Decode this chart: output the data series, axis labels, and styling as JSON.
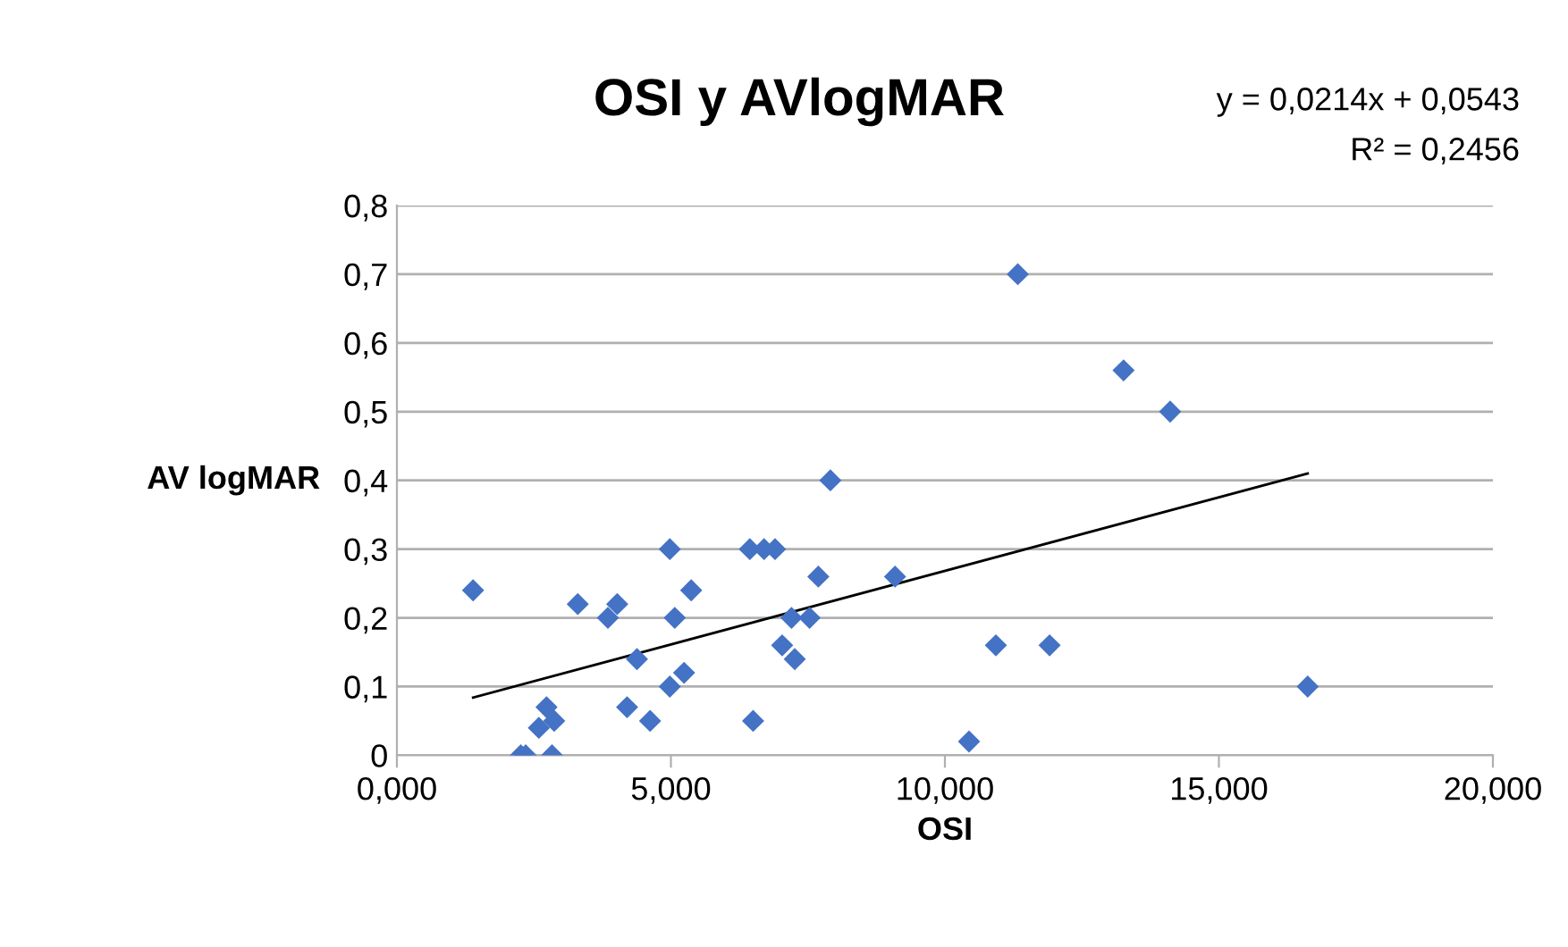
{
  "chart_data": {
    "type": "scatter",
    "title": "OSI y AVlogMAR",
    "xlabel": "OSI",
    "ylabel": "AV logMAR",
    "annotations": [
      "y = 0,0214x + 0,0543",
      "R² = 0,2456"
    ],
    "series": [
      {
        "color": "#4472c4",
        "marker": "diamond",
        "x": [
          1.39,
          3.3,
          4.02,
          3.85,
          4.98,
          5.07,
          5.37,
          4.38,
          5.24,
          4.98,
          4.2,
          4.62,
          2.73,
          2.59,
          2.87,
          2.26,
          2.35,
          2.83,
          6.44,
          6.7,
          6.9,
          7.69,
          9.09,
          7.2,
          7.53,
          7.03,
          7.26,
          6.5,
          7.91,
          11.33,
          13.26,
          14.11,
          10.93,
          11.91,
          16.62,
          10.44
        ],
        "values": [
          0.24,
          0.22,
          0.22,
          0.2,
          0.3,
          0.2,
          0.24,
          0.14,
          0.12,
          0.1,
          0.07,
          0.05,
          0.07,
          0.04,
          0.05,
          0,
          0,
          0,
          0.3,
          0.3,
          0.3,
          0.26,
          0.26,
          0.2,
          0.2,
          0.16,
          0.14,
          0.05,
          0.4,
          0.7,
          0.56,
          0.5,
          0.16,
          0.16,
          0.1,
          0.02
        ]
      },
      {
        "type": "line",
        "color": "#000000",
        "marker": "none",
        "x": [
          1.39,
          16.62
        ],
        "values": [
          0.084,
          0.41
        ]
      }
    ],
    "xlim": [
      0,
      20
    ],
    "xticks": [
      {
        "value": 0,
        "label": "0,000"
      },
      {
        "value": 5,
        "label": "5,000"
      },
      {
        "value": 10,
        "label": "10,000"
      },
      {
        "value": 15,
        "label": "15,000"
      },
      {
        "value": 20,
        "label": "20,000"
      }
    ],
    "ylim": [
      0,
      0.8
    ],
    "yticks": [
      {
        "value": 0,
        "label": "0"
      },
      {
        "value": 0.1,
        "label": "0,1"
      },
      {
        "value": 0.2,
        "label": "0,2"
      },
      {
        "value": 0.3,
        "label": "0,3"
      },
      {
        "value": 0.4,
        "label": "0,4"
      },
      {
        "value": 0.5,
        "label": "0,5"
      },
      {
        "value": 0.6,
        "label": "0,6"
      },
      {
        "value": 0.7,
        "label": "0,7"
      },
      {
        "value": 0.8,
        "label": "0,8"
      }
    ],
    "grid": "y"
  }
}
